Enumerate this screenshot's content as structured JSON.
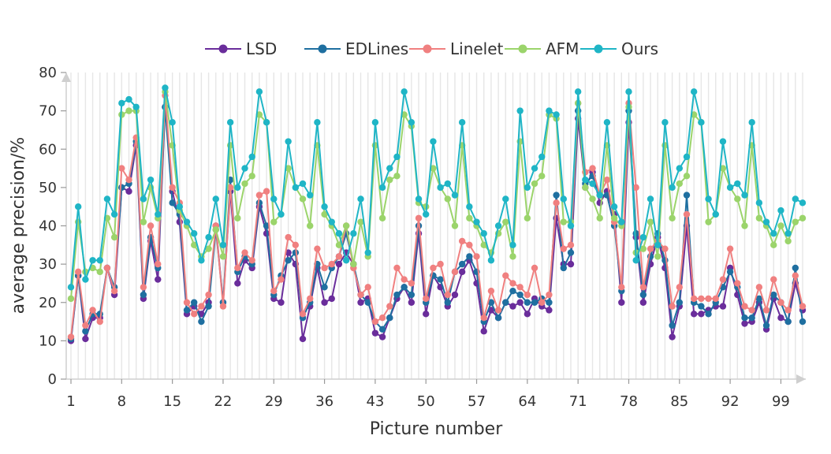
{
  "chart_data": {
    "type": "line",
    "xlabel": "Picture number",
    "ylabel": "average precision/%",
    "ylim": [
      0,
      80
    ],
    "yticks": [
      0,
      10,
      20,
      30,
      40,
      50,
      60,
      70,
      80
    ],
    "x_tick_labels": [
      "1",
      "8",
      "15",
      "22",
      "29",
      "36",
      "43",
      "50",
      "57",
      "64",
      "71",
      "78",
      "85",
      "92",
      "99"
    ],
    "x": [
      1,
      2,
      3,
      4,
      5,
      6,
      7,
      8,
      9,
      10,
      11,
      12,
      13,
      14,
      15,
      16,
      17,
      18,
      19,
      20,
      21,
      22,
      23,
      24,
      25,
      26,
      27,
      28,
      29,
      30,
      31,
      32,
      33,
      34,
      35,
      36,
      37,
      38,
      39,
      40,
      41,
      42,
      43,
      44,
      45,
      46,
      47,
      48,
      49,
      50,
      51,
      52,
      53,
      54,
      55,
      56,
      57,
      58,
      59,
      60,
      61,
      62,
      63,
      64,
      65,
      66,
      67,
      68,
      69,
      70,
      71,
      72,
      73,
      74,
      75,
      76,
      77,
      78,
      79,
      80,
      81,
      82,
      83,
      84,
      85,
      86,
      87,
      88,
      89,
      90,
      91,
      92,
      93,
      94,
      95,
      96,
      97,
      98,
      99,
      100,
      101,
      102
    ],
    "legend_position": "top-center",
    "grid": "vertical",
    "series": [
      {
        "name": "LSD",
        "color": "#6a2d9b",
        "values": [
          10,
          27,
          10.5,
          16,
          16,
          29,
          22,
          50,
          49,
          61,
          21,
          36,
          26,
          71,
          49,
          41,
          17,
          19,
          17,
          20,
          40,
          20,
          49,
          25,
          31,
          29,
          45,
          38,
          21,
          20,
          33,
          30,
          10.5,
          19,
          29,
          20,
          21,
          30,
          33,
          30,
          20,
          21,
          12,
          11,
          16,
          21,
          24,
          20,
          38,
          17,
          27,
          24,
          19,
          22,
          28,
          31,
          25,
          12.5,
          18,
          16,
          20,
          19,
          20,
          17,
          21,
          19,
          18,
          42,
          30,
          30,
          68,
          50,
          54,
          46,
          49,
          43,
          20,
          67,
          37,
          20,
          30,
          37,
          29,
          11,
          19,
          40,
          17,
          17,
          18,
          19,
          19,
          29,
          22,
          14.5,
          15,
          20,
          13,
          21,
          16,
          15,
          25,
          18
        ]
      },
      {
        "name": "EDLines",
        "color": "#1f6fa0",
        "values": [
          10.5,
          27,
          12.5,
          17,
          17,
          29,
          24,
          50,
          51,
          62,
          22,
          37,
          29,
          71,
          46,
          43,
          18,
          20,
          15,
          19,
          39,
          20,
          52,
          28,
          32,
          30,
          46,
          40,
          22,
          27,
          31,
          33,
          16,
          20,
          30,
          24,
          29,
          32,
          38,
          30,
          22,
          20,
          15,
          13,
          16,
          22,
          24,
          22,
          40,
          20,
          27,
          26,
          20,
          28,
          30,
          32,
          28,
          15,
          20,
          16,
          20,
          23,
          22,
          20,
          20,
          21,
          20,
          48,
          29,
          33,
          70,
          51,
          53,
          48,
          48,
          40,
          23,
          70,
          38,
          22,
          32,
          38,
          31,
          14,
          20,
          48,
          20,
          19,
          17,
          20,
          24,
          28,
          24,
          16,
          16,
          21,
          14,
          22,
          20,
          15,
          29,
          15
        ]
      },
      {
        "name": "Linelet",
        "color": "#f08080",
        "values": [
          11,
          28,
          14,
          18,
          15,
          29,
          23,
          55,
          52,
          63,
          24,
          40,
          30,
          74,
          50,
          46,
          20,
          17,
          19,
          22,
          40,
          19,
          50,
          29,
          33,
          31,
          48,
          49,
          23,
          26,
          37,
          35,
          17,
          21,
          34,
          29,
          30,
          32,
          40,
          29,
          22,
          24,
          15,
          16,
          19,
          29,
          26,
          25,
          42,
          21,
          29,
          30,
          22,
          28,
          36,
          35,
          32,
          16,
          23,
          18,
          27,
          25,
          24,
          22,
          29,
          20,
          22,
          46,
          34,
          35,
          72,
          54,
          55,
          48,
          52,
          41,
          24,
          72,
          50,
          24,
          34,
          36,
          34,
          19,
          24,
          43,
          21,
          21,
          21,
          21,
          26,
          34,
          25,
          19,
          18,
          24,
          18,
          26,
          20,
          18,
          27,
          19
        ]
      },
      {
        "name": "AFM",
        "color": "#9bd46b",
        "values": [
          21,
          41,
          28,
          29,
          28,
          42,
          37,
          69,
          70,
          70,
          41,
          50,
          42,
          75,
          61,
          44,
          40,
          35,
          32,
          34,
          39,
          32,
          61,
          42,
          51,
          53,
          69,
          67,
          41,
          43,
          55,
          50,
          47,
          40,
          61,
          43,
          40,
          35,
          40,
          30,
          41,
          32,
          61,
          42,
          52,
          53,
          69,
          66,
          46,
          45,
          55,
          50,
          47,
          40,
          61,
          42,
          40,
          35,
          33,
          38,
          41,
          32,
          62,
          42,
          51,
          53,
          69,
          68,
          41,
          41,
          72,
          50,
          47,
          42,
          61,
          42,
          40,
          71,
          33,
          34,
          41,
          32,
          61,
          42,
          51,
          53,
          69,
          67,
          41,
          43,
          55,
          50,
          47,
          40,
          61,
          42,
          40,
          35,
          40,
          36,
          41,
          42
        ]
      },
      {
        "name": "Ours",
        "color": "#1fb5c6",
        "values": [
          24,
          45,
          26,
          31,
          31,
          47,
          43,
          72,
          73,
          71,
          47,
          52,
          43,
          76,
          67,
          45,
          41,
          38,
          31,
          37,
          47,
          35,
          67,
          50,
          55,
          58,
          75,
          67,
          47,
          43,
          62,
          50,
          51,
          48,
          67,
          45,
          41,
          38,
          31,
          38,
          47,
          33,
          67,
          50,
          55,
          58,
          75,
          67,
          47,
          43,
          62,
          50,
          51,
          48,
          67,
          45,
          41,
          38,
          31,
          40,
          47,
          35,
          70,
          50,
          55,
          58,
          70,
          69,
          47,
          40,
          75,
          52,
          51,
          48,
          67,
          45,
          41,
          75,
          31,
          37,
          47,
          35,
          67,
          50,
          55,
          58,
          75,
          67,
          47,
          43,
          62,
          50,
          51,
          48,
          67,
          46,
          41,
          38,
          44,
          38,
          47,
          46
        ]
      }
    ]
  }
}
